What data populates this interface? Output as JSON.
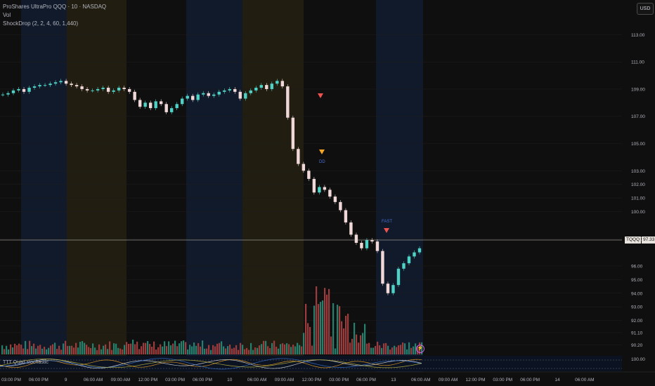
{
  "legend": {
    "title": "ProShares UltraPro QQQ · 10 · NASDAQ",
    "vol": "Vol",
    "indicator": "ShockDrop (2, 2, 4, 60, 1,440)"
  },
  "currency_button": "USD",
  "oscillator_label": "TTT Quad stochastic",
  "last_price": {
    "symbol": "TQQQ",
    "value": "97.33"
  },
  "colors": {
    "up": "#4fd1c5",
    "down": "#f0d8d8",
    "vol_up": "#26806e",
    "vol_down": "#9c3c3c",
    "session_blue": "#101a2a",
    "session_gold": "#211d10",
    "marker_red": "#ef5350",
    "marker_orange": "#f5a623"
  },
  "markers": [
    {
      "type": "red-down-triangle",
      "label": "",
      "time": "Day10 11:40 AM",
      "price": 108.2
    },
    {
      "type": "orange-down-triangle",
      "label": "DD",
      "time": "Day10 12:10 PM",
      "price": 104.1
    },
    {
      "type": "red-down-triangle",
      "label": "FAST",
      "time": "Day10 04:50 PM",
      "price": 98.0
    }
  ],
  "chart_data": {
    "type": "line",
    "title": "ProShares UltraPro QQQ · 10 · NASDAQ",
    "price_axis_ticks": [
      "113.00",
      "111.00",
      "109.00",
      "107.00",
      "105.00",
      "103.00",
      "102.00",
      "101.00",
      "100.00",
      "98.00",
      "96.00",
      "95.00",
      "94.00",
      "93.00",
      "92.00",
      "91.10",
      "90.20"
    ],
    "oscillator_axis_ticks": [
      "100.00"
    ],
    "time_axis_ticks": [
      "03:00 PM",
      "06:00 PM",
      "9",
      "06:00 AM",
      "09:00 AM",
      "12:00 PM",
      "03:00 PM",
      "06:00 PM",
      "10",
      "06:00 AM",
      "09:00 AM",
      "12:00 PM",
      "03:00 PM",
      "06:00 PM",
      "13",
      "06:00 AM",
      "09:00 AM",
      "12:00 PM",
      "03:00 PM",
      "06:00 PM",
      "14",
      "06:00 AM"
    ],
    "ylim": [
      89.5,
      114
    ],
    "series": [
      {
        "values": [
          108.6,
          108.7,
          108.9,
          109.0,
          108.8,
          109.1,
          109.2,
          109.3,
          109.3,
          109.4,
          109.5,
          109.6,
          109.4,
          109.3,
          109.2,
          109.0,
          108.9,
          108.9,
          109.0,
          109.1,
          108.8,
          108.9,
          109.1,
          109.0,
          108.8,
          108.2,
          107.7,
          108.0,
          107.6,
          108.1,
          107.9,
          107.3,
          107.6,
          107.9,
          108.3,
          108.5,
          108.2,
          108.6,
          108.7,
          108.5,
          108.6,
          108.8,
          108.9,
          109.0,
          108.8,
          108.3,
          108.7,
          108.9,
          109.1,
          109.3,
          109.0,
          109.4,
          109.6,
          109.2,
          106.9,
          104.6,
          103.5,
          103.0,
          102.4,
          101.4,
          101.8,
          101.6,
          101.1,
          100.7,
          100.1,
          99.2,
          98.3,
          97.7,
          97.3,
          97.9,
          97.8,
          97.1,
          94.7,
          94.0,
          94.6,
          95.8,
          96.2,
          96.7,
          97.0,
          97.3
        ]
      }
    ]
  }
}
